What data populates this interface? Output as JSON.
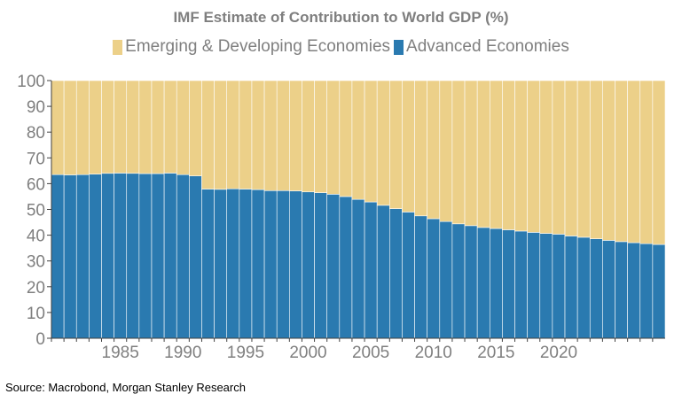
{
  "chart_data": {
    "type": "bar",
    "stacked": true,
    "title": "IMF Estimate of Contribution to World GDP (%)",
    "xlabel": "",
    "ylabel": "",
    "ylim": [
      0,
      100
    ],
    "yticks": [
      "0",
      "10",
      "20",
      "30",
      "40",
      "50",
      "60",
      "70",
      "80",
      "90",
      "100"
    ],
    "xtick_labels": [
      "1985",
      "1990",
      "1995",
      "2000",
      "2005",
      "2010",
      "2015",
      "2020"
    ],
    "grid": false,
    "legend_position": "top",
    "categories": [
      "1980",
      "1981",
      "1982",
      "1983",
      "1984",
      "1985",
      "1986",
      "1987",
      "1988",
      "1989",
      "1990",
      "1991",
      "1992",
      "1993",
      "1994",
      "1995",
      "1996",
      "1997",
      "1998",
      "1999",
      "2000",
      "2001",
      "2002",
      "2003",
      "2004",
      "2005",
      "2006",
      "2007",
      "2008",
      "2009",
      "2010",
      "2011",
      "2012",
      "2013",
      "2014",
      "2015",
      "2016",
      "2017",
      "2018",
      "2019",
      "2020",
      "2021",
      "2022",
      "2023",
      "2024",
      "2025",
      "2026",
      "2027",
      "2028"
    ],
    "series": [
      {
        "name": "Advanced Economies",
        "color": "#2a7ab0",
        "values": [
          63.5,
          63.4,
          63.5,
          63.7,
          64.0,
          64.1,
          64.0,
          63.9,
          63.9,
          64.1,
          63.5,
          63.0,
          57.9,
          57.8,
          58.0,
          57.9,
          57.7,
          57.3,
          57.3,
          57.2,
          56.8,
          56.5,
          55.9,
          55.0,
          53.9,
          52.9,
          51.6,
          50.3,
          49.0,
          47.5,
          46.4,
          45.3,
          44.4,
          43.7,
          43.0,
          42.6,
          42.1,
          41.6,
          41.1,
          40.7,
          40.4,
          39.7,
          39.2,
          38.6,
          38.0,
          37.5,
          37.1,
          36.7,
          36.4
        ]
      },
      {
        "name": "Emerging & Developing Economies",
        "color": "#ecd089",
        "values": [
          36.5,
          36.6,
          36.5,
          36.3,
          36.0,
          35.9,
          36.0,
          36.1,
          36.1,
          35.9,
          36.5,
          37.0,
          42.1,
          42.2,
          42.0,
          42.1,
          42.3,
          42.7,
          42.7,
          42.8,
          43.2,
          43.5,
          44.1,
          45.0,
          46.1,
          47.1,
          48.4,
          49.7,
          51.0,
          52.5,
          53.6,
          54.7,
          55.6,
          56.3,
          57.0,
          57.4,
          57.9,
          58.4,
          58.9,
          59.3,
          59.6,
          60.3,
          60.8,
          61.4,
          62.0,
          62.5,
          62.9,
          63.3,
          63.6
        ]
      }
    ]
  },
  "source": "Source: Macrobond, Morgan Stanley Research"
}
